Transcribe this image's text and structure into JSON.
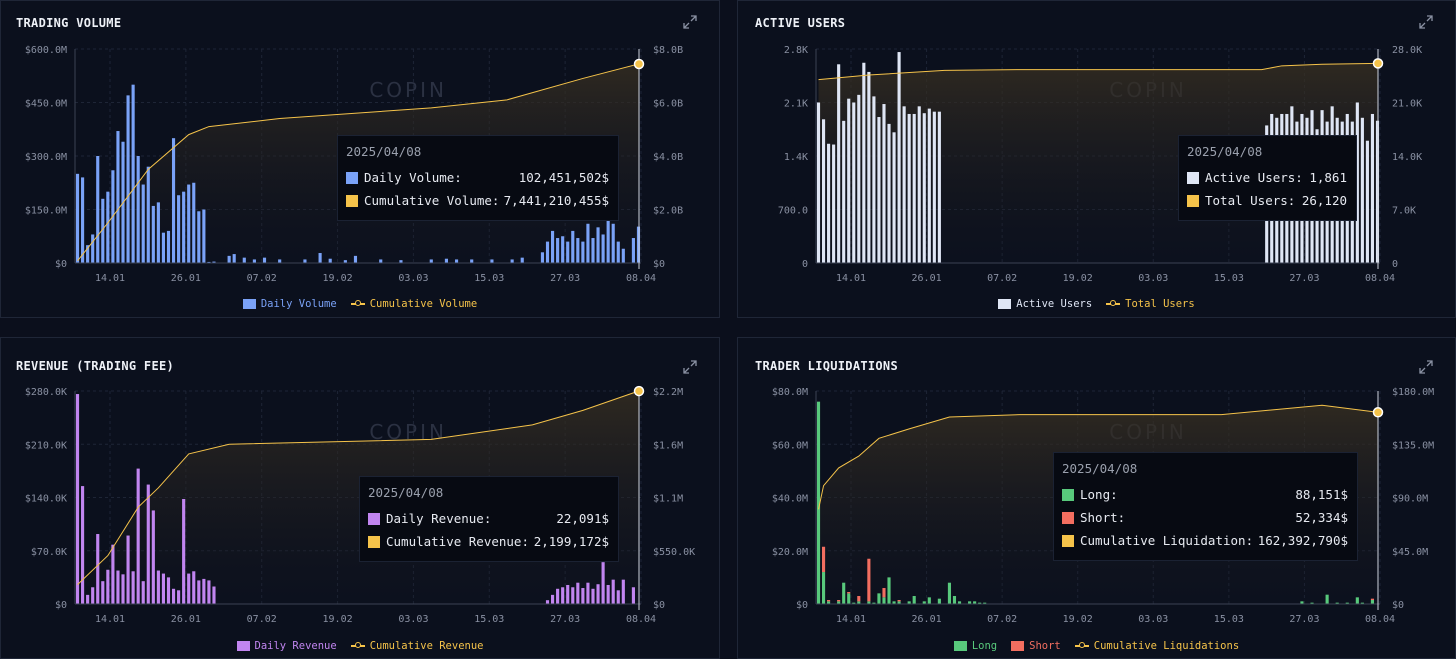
{
  "watermark": "COPIN",
  "chart_data": [
    {
      "id": "volume",
      "type": "bar",
      "title": "TRADING VOLUME",
      "bar_color": "#7aa2f7",
      "line_color": "#f5c34a",
      "left_ticks": [
        "$0",
        "$150.0M",
        "$300.0M",
        "$450.0M",
        "$600.0M"
      ],
      "right_ticks": [
        "$0",
        "$2.0B",
        "$4.0B",
        "$6.0B",
        "$8.0B"
      ],
      "ylim": [
        0,
        600
      ],
      "y2lim": [
        0,
        8000
      ],
      "x_labels": [
        "14.01",
        "26.01",
        "07.02",
        "19.02",
        "03.03",
        "15.03",
        "27.03",
        "08.04"
      ],
      "bars": [
        {
          "i": 0,
          "v": 250
        },
        {
          "i": 1,
          "v": 240
        },
        {
          "i": 2,
          "v": 50
        },
        {
          "i": 3,
          "v": 80
        },
        {
          "i": 4,
          "v": 300
        },
        {
          "i": 5,
          "v": 180
        },
        {
          "i": 6,
          "v": 200
        },
        {
          "i": 7,
          "v": 260
        },
        {
          "i": 8,
          "v": 370
        },
        {
          "i": 9,
          "v": 340
        },
        {
          "i": 10,
          "v": 470
        },
        {
          "i": 11,
          "v": 500
        },
        {
          "i": 12,
          "v": 300
        },
        {
          "i": 13,
          "v": 220
        },
        {
          "i": 14,
          "v": 270
        },
        {
          "i": 15,
          "v": 160
        },
        {
          "i": 16,
          "v": 170
        },
        {
          "i": 17,
          "v": 85
        },
        {
          "i": 18,
          "v": 90
        },
        {
          "i": 19,
          "v": 350
        },
        {
          "i": 20,
          "v": 190
        },
        {
          "i": 21,
          "v": 200
        },
        {
          "i": 22,
          "v": 220
        },
        {
          "i": 23,
          "v": 225
        },
        {
          "i": 24,
          "v": 145
        },
        {
          "i": 25,
          "v": 150
        },
        {
          "i": 26,
          "v": 3
        },
        {
          "i": 27,
          "v": 4
        },
        {
          "i": 30,
          "v": 20
        },
        {
          "i": 31,
          "v": 25
        },
        {
          "i": 33,
          "v": 15
        },
        {
          "i": 35,
          "v": 10
        },
        {
          "i": 37,
          "v": 15
        },
        {
          "i": 40,
          "v": 10
        },
        {
          "i": 45,
          "v": 10
        },
        {
          "i": 48,
          "v": 28
        },
        {
          "i": 50,
          "v": 12
        },
        {
          "i": 53,
          "v": 8
        },
        {
          "i": 55,
          "v": 20
        },
        {
          "i": 60,
          "v": 10
        },
        {
          "i": 64,
          "v": 8
        },
        {
          "i": 70,
          "v": 10
        },
        {
          "i": 73,
          "v": 12
        },
        {
          "i": 75,
          "v": 10
        },
        {
          "i": 78,
          "v": 10
        },
        {
          "i": 82,
          "v": 10
        },
        {
          "i": 86,
          "v": 10
        },
        {
          "i": 88,
          "v": 15
        },
        {
          "i": 92,
          "v": 30
        },
        {
          "i": 93,
          "v": 60
        },
        {
          "i": 94,
          "v": 90
        },
        {
          "i": 95,
          "v": 70
        },
        {
          "i": 96,
          "v": 75
        },
        {
          "i": 97,
          "v": 60
        },
        {
          "i": 98,
          "v": 90
        },
        {
          "i": 99,
          "v": 70
        },
        {
          "i": 100,
          "v": 60
        },
        {
          "i": 101,
          "v": 110
        },
        {
          "i": 102,
          "v": 70
        },
        {
          "i": 103,
          "v": 100
        },
        {
          "i": 104,
          "v": 80
        },
        {
          "i": 105,
          "v": 130
        },
        {
          "i": 106,
          "v": 110
        },
        {
          "i": 107,
          "v": 60
        },
        {
          "i": 108,
          "v": 40
        },
        {
          "i": 110,
          "v": 70
        },
        {
          "i": 111,
          "v": 102
        }
      ],
      "cumulative": [
        [
          0,
          80
        ],
        [
          6,
          1500
        ],
        [
          14,
          3500
        ],
        [
          22,
          4800
        ],
        [
          26,
          5100
        ],
        [
          40,
          5400
        ],
        [
          70,
          5800
        ],
        [
          85,
          6100
        ],
        [
          100,
          6900
        ],
        [
          111,
          7440
        ]
      ],
      "tooltip": {
        "date": "2025/04/08",
        "rows": [
          {
            "label": "Daily Volume:",
            "value": "102,451,502$",
            "color": "#7aa2f7"
          },
          {
            "label": "Cumulative Volume:",
            "value": "7,441,210,455$",
            "color": "#f5c34a"
          }
        ]
      },
      "legend": [
        "Daily Volume",
        "Cumulative Volume"
      ]
    },
    {
      "id": "users",
      "type": "bar",
      "title": "ACTIVE USERS",
      "bar_color": "#dfe6f5",
      "line_color": "#f5c34a",
      "left_ticks": [
        "0",
        "700.0",
        "1.4K",
        "2.1K",
        "2.8K"
      ],
      "right_ticks": [
        "0",
        "7.0K",
        "14.0K",
        "21.0K",
        "28.0K"
      ],
      "ylim": [
        0,
        2800
      ],
      "y2lim": [
        0,
        28000
      ],
      "x_labels": [
        "14.01",
        "26.01",
        "07.02",
        "19.02",
        "03.03",
        "15.03",
        "27.03",
        "08.04"
      ],
      "bars": [
        {
          "i": 0,
          "v": 2100
        },
        {
          "i": 1,
          "v": 1880
        },
        {
          "i": 2,
          "v": 1560
        },
        {
          "i": 3,
          "v": 1550
        },
        {
          "i": 4,
          "v": 2600
        },
        {
          "i": 5,
          "v": 1860
        },
        {
          "i": 6,
          "v": 2150
        },
        {
          "i": 7,
          "v": 2100
        },
        {
          "i": 8,
          "v": 2200
        },
        {
          "i": 9,
          "v": 2620
        },
        {
          "i": 10,
          "v": 2500
        },
        {
          "i": 11,
          "v": 2180
        },
        {
          "i": 12,
          "v": 1910
        },
        {
          "i": 13,
          "v": 2080
        },
        {
          "i": 14,
          "v": 1820
        },
        {
          "i": 15,
          "v": 1710
        },
        {
          "i": 16,
          "v": 2760
        },
        {
          "i": 17,
          "v": 2050
        },
        {
          "i": 18,
          "v": 1950
        },
        {
          "i": 19,
          "v": 1950
        },
        {
          "i": 20,
          "v": 2050
        },
        {
          "i": 21,
          "v": 1960
        },
        {
          "i": 22,
          "v": 2020
        },
        {
          "i": 23,
          "v": 1980
        },
        {
          "i": 24,
          "v": 1980
        },
        {
          "i": 89,
          "v": 1800
        },
        {
          "i": 90,
          "v": 1950
        },
        {
          "i": 91,
          "v": 1900
        },
        {
          "i": 92,
          "v": 1950
        },
        {
          "i": 93,
          "v": 1950
        },
        {
          "i": 94,
          "v": 2050
        },
        {
          "i": 95,
          "v": 1850
        },
        {
          "i": 96,
          "v": 1950
        },
        {
          "i": 97,
          "v": 1900
        },
        {
          "i": 98,
          "v": 2000
        },
        {
          "i": 99,
          "v": 1750
        },
        {
          "i": 100,
          "v": 2000
        },
        {
          "i": 101,
          "v": 1850
        },
        {
          "i": 102,
          "v": 2050
        },
        {
          "i": 103,
          "v": 1900
        },
        {
          "i": 104,
          "v": 1850
        },
        {
          "i": 105,
          "v": 1950
        },
        {
          "i": 106,
          "v": 1850
        },
        {
          "i": 107,
          "v": 2100
        },
        {
          "i": 108,
          "v": 1900
        },
        {
          "i": 109,
          "v": 1600
        },
        {
          "i": 110,
          "v": 1950
        },
        {
          "i": 111,
          "v": 1861
        }
      ],
      "cumulative": [
        [
          0,
          24000
        ],
        [
          10,
          24600
        ],
        [
          25,
          25200
        ],
        [
          40,
          25300
        ],
        [
          88,
          25300
        ],
        [
          92,
          25800
        ],
        [
          100,
          26000
        ],
        [
          111,
          26120
        ]
      ],
      "tooltip": {
        "date": "2025/04/08",
        "rows": [
          {
            "label": "Active Users:",
            "value": "1,861",
            "color": "#dfe6f5"
          },
          {
            "label": "Total Users:",
            "value": "26,120",
            "color": "#f5c34a"
          }
        ]
      },
      "legend": [
        "Active Users",
        "Total Users"
      ]
    },
    {
      "id": "revenue",
      "type": "bar",
      "title": "REVENUE (TRADING FEE)",
      "bar_color": "#c185f0",
      "line_color": "#f5c34a",
      "left_ticks": [
        "$0",
        "$70.0K",
        "$140.0K",
        "$210.0K",
        "$280.0K"
      ],
      "right_ticks": [
        "$0",
        "$550.0K",
        "$1.1M",
        "$1.6M",
        "$2.2M"
      ],
      "ylim": [
        0,
        280
      ],
      "y2lim": [
        0,
        2200
      ],
      "x_labels": [
        "14.01",
        "26.01",
        "07.02",
        "19.02",
        "03.03",
        "15.03",
        "27.03",
        "08.04"
      ],
      "bars": [
        {
          "i": 0,
          "v": 276
        },
        {
          "i": 1,
          "v": 155
        },
        {
          "i": 2,
          "v": 12
        },
        {
          "i": 3,
          "v": 22
        },
        {
          "i": 4,
          "v": 92
        },
        {
          "i": 5,
          "v": 30
        },
        {
          "i": 6,
          "v": 45
        },
        {
          "i": 7,
          "v": 78
        },
        {
          "i": 8,
          "v": 44
        },
        {
          "i": 9,
          "v": 39
        },
        {
          "i": 10,
          "v": 90
        },
        {
          "i": 11,
          "v": 43
        },
        {
          "i": 12,
          "v": 178
        },
        {
          "i": 13,
          "v": 30
        },
        {
          "i": 14,
          "v": 157
        },
        {
          "i": 15,
          "v": 123
        },
        {
          "i": 16,
          "v": 44
        },
        {
          "i": 17,
          "v": 40
        },
        {
          "i": 18,
          "v": 35
        },
        {
          "i": 19,
          "v": 20
        },
        {
          "i": 20,
          "v": 18
        },
        {
          "i": 21,
          "v": 138
        },
        {
          "i": 22,
          "v": 40
        },
        {
          "i": 23,
          "v": 43
        },
        {
          "i": 24,
          "v": 31
        },
        {
          "i": 25,
          "v": 33
        },
        {
          "i": 26,
          "v": 31
        },
        {
          "i": 27,
          "v": 23
        },
        {
          "i": 93,
          "v": 5
        },
        {
          "i": 94,
          "v": 12
        },
        {
          "i": 95,
          "v": 20
        },
        {
          "i": 96,
          "v": 22
        },
        {
          "i": 97,
          "v": 25
        },
        {
          "i": 98,
          "v": 22
        },
        {
          "i": 99,
          "v": 28
        },
        {
          "i": 100,
          "v": 21
        },
        {
          "i": 101,
          "v": 28
        },
        {
          "i": 102,
          "v": 20
        },
        {
          "i": 103,
          "v": 26
        },
        {
          "i": 104,
          "v": 55
        },
        {
          "i": 105,
          "v": 25
        },
        {
          "i": 106,
          "v": 32
        },
        {
          "i": 107,
          "v": 18
        },
        {
          "i": 108,
          "v": 32
        },
        {
          "i": 110,
          "v": 22
        }
      ],
      "cumulative": [
        [
          0,
          200
        ],
        [
          6,
          500
        ],
        [
          12,
          1000
        ],
        [
          16,
          1200
        ],
        [
          22,
          1550
        ],
        [
          30,
          1650
        ],
        [
          70,
          1700
        ],
        [
          90,
          1850
        ],
        [
          100,
          2000
        ],
        [
          111,
          2199
        ]
      ],
      "tooltip": {
        "date": "2025/04/08",
        "rows": [
          {
            "label": "Daily Revenue:",
            "value": "22,091$",
            "color": "#c185f0"
          },
          {
            "label": "Cumulative Revenue:",
            "value": "2,199,172$",
            "color": "#f5c34a"
          }
        ]
      },
      "legend": [
        "Daily Revenue",
        "Cumulative Revenue"
      ]
    },
    {
      "id": "liquidations",
      "type": "bar",
      "title": "TRADER LIQUIDATIONS",
      "bar_color": "#58c97c",
      "bar2_color": "#f36e60",
      "line_color": "#f5c34a",
      "left_ticks": [
        "$0",
        "$20.0M",
        "$40.0M",
        "$60.0M",
        "$80.0M"
      ],
      "right_ticks": [
        "$0",
        "$45.0M",
        "$90.0M",
        "$135.0M",
        "$180.0M"
      ],
      "ylim": [
        0,
        80
      ],
      "y2lim": [
        0,
        180
      ],
      "x_labels": [
        "14.01",
        "26.01",
        "07.02",
        "19.02",
        "03.03",
        "15.03",
        "27.03",
        "08.04"
      ],
      "stacked": [
        {
          "i": 0,
          "a": 76,
          "b": 0
        },
        {
          "i": 1,
          "a": 12,
          "b": 9.5
        },
        {
          "i": 2,
          "a": 1,
          "b": 0.5
        },
        {
          "i": 4,
          "a": 1,
          "b": 0.5
        },
        {
          "i": 5,
          "a": 8,
          "b": 0
        },
        {
          "i": 6,
          "a": 4,
          "b": 0.5
        },
        {
          "i": 7,
          "a": 0.5,
          "b": 0
        },
        {
          "i": 8,
          "a": 1,
          "b": 2
        },
        {
          "i": 10,
          "a": 1,
          "b": 16
        },
        {
          "i": 11,
          "a": 0.5,
          "b": 0
        },
        {
          "i": 12,
          "a": 4,
          "b": 0
        },
        {
          "i": 13,
          "a": 2.5,
          "b": 3.5
        },
        {
          "i": 14,
          "a": 10,
          "b": 0
        },
        {
          "i": 15,
          "a": 1,
          "b": 0
        },
        {
          "i": 16,
          "a": 1,
          "b": 0.5
        },
        {
          "i": 18,
          "a": 1,
          "b": 0
        },
        {
          "i": 19,
          "a": 3,
          "b": 0
        },
        {
          "i": 21,
          "a": 1,
          "b": 0
        },
        {
          "i": 22,
          "a": 2.5,
          "b": 0
        },
        {
          "i": 24,
          "a": 2,
          "b": 0
        },
        {
          "i": 26,
          "a": 8,
          "b": 0
        },
        {
          "i": 27,
          "a": 3,
          "b": 0
        },
        {
          "i": 28,
          "a": 1,
          "b": 0
        },
        {
          "i": 30,
          "a": 1,
          "b": 0
        },
        {
          "i": 31,
          "a": 1,
          "b": 0
        },
        {
          "i": 32,
          "a": 0.5,
          "b": 0
        },
        {
          "i": 33,
          "a": 0.5,
          "b": 0
        },
        {
          "i": 96,
          "a": 1,
          "b": 0
        },
        {
          "i": 98,
          "a": 0.5,
          "b": 0
        },
        {
          "i": 101,
          "a": 3.5,
          "b": 0
        },
        {
          "i": 103,
          "a": 0.5,
          "b": 0
        },
        {
          "i": 105,
          "a": 0.5,
          "b": 0
        },
        {
          "i": 107,
          "a": 2.5,
          "b": 0
        },
        {
          "i": 108,
          "a": 0.5,
          "b": 0
        },
        {
          "i": 110,
          "a": 1.5,
          "b": 0.5
        }
      ],
      "cumulative": [
        [
          0,
          80
        ],
        [
          1,
          100
        ],
        [
          4,
          115
        ],
        [
          8,
          125
        ],
        [
          12,
          140
        ],
        [
          18,
          148
        ],
        [
          26,
          158
        ],
        [
          40,
          160
        ],
        [
          80,
          160
        ],
        [
          100,
          168
        ],
        [
          111,
          162
        ]
      ],
      "tooltip": {
        "date": "2025/04/08",
        "rows": [
          {
            "label": "Long:",
            "value": "88,151$",
            "color": "#58c97c"
          },
          {
            "label": "Short:",
            "value": "52,334$",
            "color": "#f36e60"
          },
          {
            "label": "Cumulative Liquidation:",
            "value": "162,392,790$",
            "color": "#f5c34a"
          }
        ]
      },
      "legend": [
        "Long",
        "Short",
        "Cumulative Liquidations"
      ]
    }
  ]
}
